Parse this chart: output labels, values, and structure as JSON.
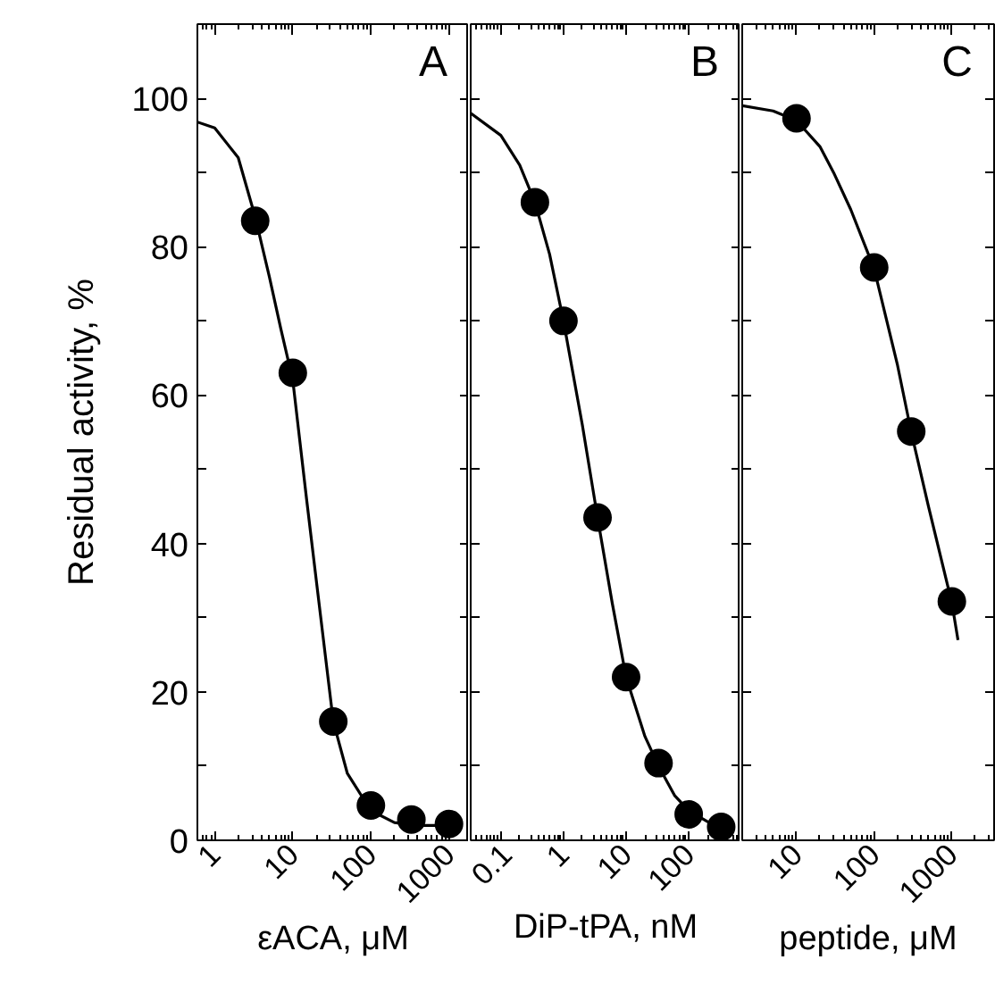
{
  "chart_data": [
    {
      "type": "scatter",
      "xlabel": "εACA, μM",
      "ylabel": "Residual activity, %",
      "annotations": [
        "A"
      ],
      "log": "x",
      "grid": false,
      "marker": "circle",
      "line_style": "solid",
      "xlim": [
        0.6,
        1800
      ],
      "xticks": [
        1,
        10,
        100,
        1000
      ],
      "ylim": [
        0,
        110
      ],
      "yticks": [
        0,
        {
          "value": 10,
          "label": null
        },
        20,
        {
          "value": 30,
          "label": null
        },
        40,
        {
          "value": 50,
          "label": null
        },
        60,
        {
          "value": 70,
          "label": null
        },
        80,
        {
          "value": 90,
          "label": null
        },
        100
      ],
      "series": [
        {
          "color": "#000000",
          "x": [
            3.3,
            10,
            33,
            100,
            330,
            1000
          ],
          "values": [
            83.5,
            63,
            16,
            4.7,
            2.8,
            2.2
          ]
        },
        {
          "type": "line",
          "marker": "none",
          "color": "#000000",
          "x": [
            0.6,
            1,
            2,
            3.3,
            5,
            7,
            10,
            15,
            20,
            33,
            50,
            100,
            200,
            400,
            1000
          ],
          "values": [
            96.8,
            96,
            92,
            84,
            76,
            69,
            62,
            46,
            35,
            16,
            9,
            4,
            2.4,
            2,
            2
          ]
        }
      ]
    },
    {
      "type": "scatter",
      "xlabel": "DiP-tPA, nM",
      "annotations": [
        "B"
      ],
      "log": "x",
      "grid": false,
      "marker": "circle",
      "line_style": "solid",
      "tick_labels": "x",
      "xlim": [
        0.033,
        670
      ],
      "xticks": [
        0.1,
        1,
        10,
        100
      ],
      "ylim": [
        0,
        110
      ],
      "yticks": [
        0,
        {
          "value": 10,
          "label": null
        },
        20,
        {
          "value": 30,
          "label": null
        },
        40,
        {
          "value": 50,
          "label": null
        },
        60,
        {
          "value": 70,
          "label": null
        },
        80,
        {
          "value": 90,
          "label": null
        },
        100
      ],
      "series": [
        {
          "color": "#000000",
          "x": [
            0.35,
            1,
            3.5,
            10,
            33,
            100,
            330
          ],
          "values": [
            86,
            70,
            43.5,
            22,
            10.4,
            3.5,
            1.8
          ]
        },
        {
          "type": "line",
          "marker": "none",
          "color": "#000000",
          "x": [
            0.033,
            0.1,
            0.2,
            0.35,
            0.6,
            1,
            2,
            3.5,
            6,
            10,
            20,
            33,
            60,
            100,
            200,
            400
          ],
          "values": [
            98,
            95,
            91,
            86,
            79,
            70,
            56,
            43.5,
            32,
            22,
            14,
            10,
            6,
            4,
            2.5,
            2
          ]
        }
      ]
    },
    {
      "type": "scatter",
      "xlabel": "peptide, μM",
      "annotations": [
        "C"
      ],
      "log": "x",
      "grid": false,
      "marker": "circle",
      "line_style": "solid",
      "tick_labels": "x",
      "xlim": [
        2,
        3500
      ],
      "xticks": [
        10,
        100,
        1000
      ],
      "ylim": [
        0,
        110
      ],
      "yticks": [
        0,
        {
          "value": 10,
          "label": null
        },
        20,
        {
          "value": 30,
          "label": null
        },
        40,
        {
          "value": 50,
          "label": null
        },
        60,
        {
          "value": 70,
          "label": null
        },
        80,
        {
          "value": 90,
          "label": null
        },
        100
      ],
      "series": [
        {
          "color": "#000000",
          "x": [
            10,
            100,
            300,
            1000
          ],
          "values": [
            97.3,
            77.2,
            55.1,
            32.2
          ]
        },
        {
          "type": "line",
          "marker": "none",
          "color": "#000000",
          "x": [
            2,
            5,
            10,
            20,
            30,
            50,
            100,
            200,
            300,
            500,
            1000,
            1200
          ],
          "values": [
            99,
            98.3,
            97,
            93.5,
            90,
            85,
            77,
            64,
            55,
            45,
            32,
            27
          ]
        }
      ]
    }
  ]
}
